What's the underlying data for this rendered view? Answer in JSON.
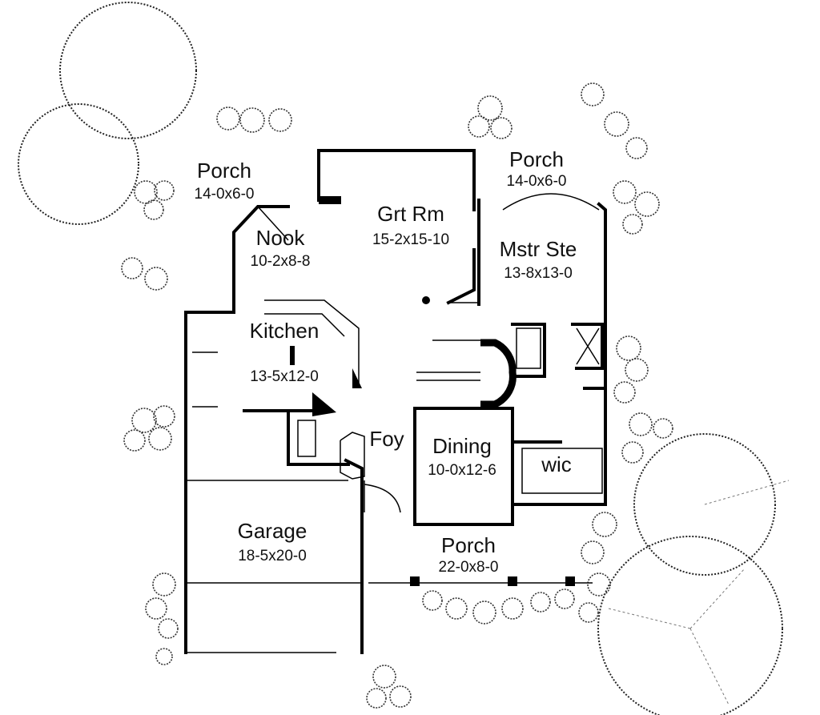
{
  "rooms": {
    "porch_left": {
      "name": "Porch",
      "dims": "14-0x6-0"
    },
    "porch_right": {
      "name": "Porch",
      "dims": "14-0x6-0"
    },
    "grt_rm": {
      "name": "Grt Rm",
      "dims": "15-2x15-10"
    },
    "nook": {
      "name": "Nook",
      "dims": "10-2x8-8"
    },
    "mstr_ste": {
      "name": "Mstr Ste",
      "dims": "13-8x13-0"
    },
    "kitchen": {
      "name": "Kitchen",
      "dims": "13-5x12-0"
    },
    "foy": {
      "name": "Foy"
    },
    "dining": {
      "name": "Dining",
      "dims": "10-0x12-6"
    },
    "wic": {
      "name": "wic"
    },
    "garage": {
      "name": "Garage",
      "dims": "18-5x20-0"
    },
    "porch_front": {
      "name": "Porch",
      "dims": "22-0x8-0"
    }
  }
}
